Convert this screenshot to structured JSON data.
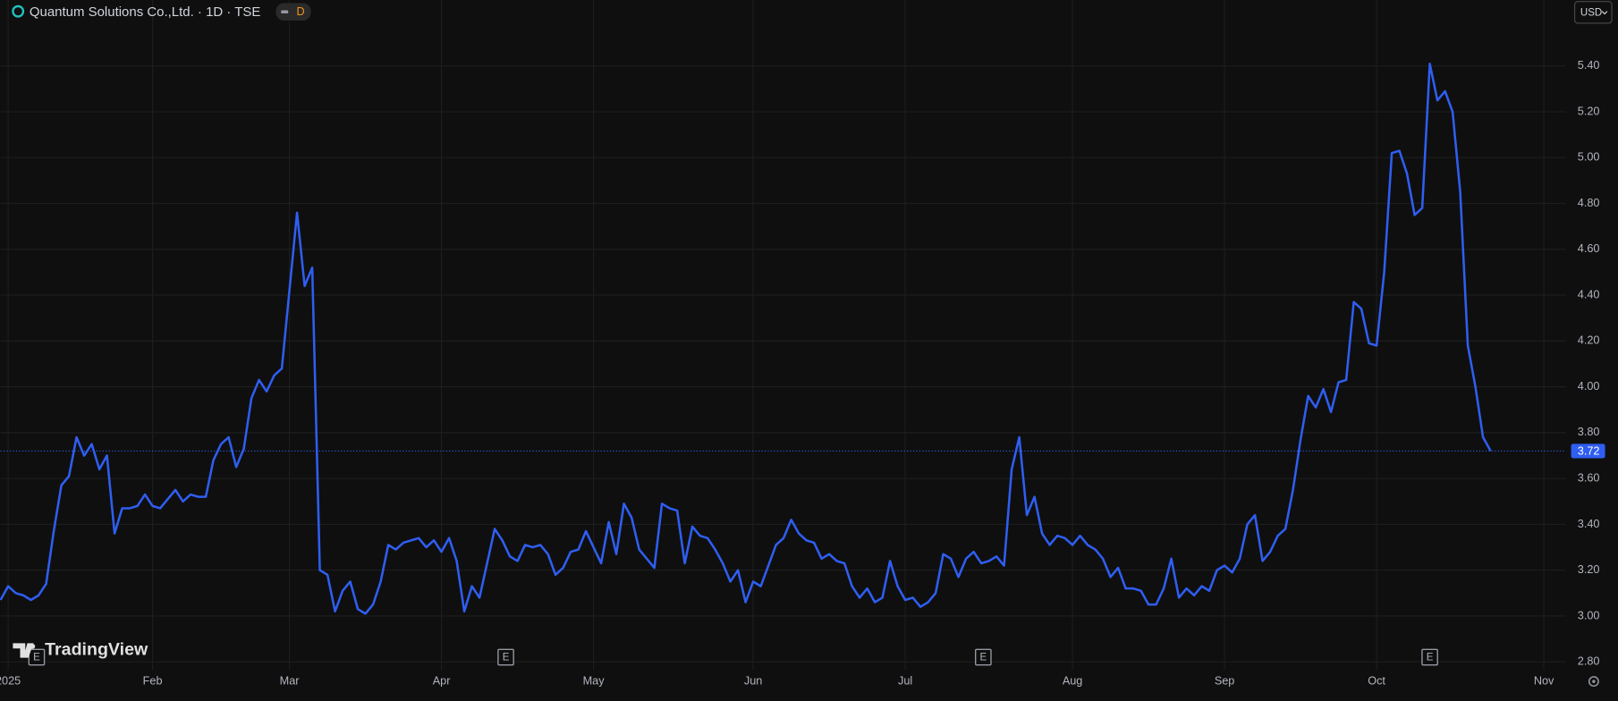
{
  "header": {
    "title": "Quantum Solutions Co.,Ltd. · 1D · TSE",
    "interval_badge": "D",
    "currency": "USD"
  },
  "watermark": "TradingView",
  "chart_data": {
    "type": "line",
    "color": "#2f5ef2",
    "grid": true,
    "ylim": [
      2.764,
      5.688
    ],
    "yticks": [
      {
        "value": 2.8,
        "label": "2.80"
      },
      {
        "value": 3.0,
        "label": "3.00"
      },
      {
        "value": 3.2,
        "label": "3.20"
      },
      {
        "value": 3.4,
        "label": "3.40"
      },
      {
        "value": 3.6,
        "label": "3.60"
      },
      {
        "value": 3.8,
        "label": "3.80"
      },
      {
        "value": 4.0,
        "label": "4.00"
      },
      {
        "value": 4.2,
        "label": "4.20"
      },
      {
        "value": 4.4,
        "label": "4.40"
      },
      {
        "value": 4.6,
        "label": "4.60"
      },
      {
        "value": 4.8,
        "label": "4.80"
      },
      {
        "value": 5.0,
        "label": "5.00"
      },
      {
        "value": 5.2,
        "label": "5.20"
      },
      {
        "value": 5.4,
        "label": "5.40"
      }
    ],
    "categories": [
      null,
      "2025",
      null,
      null,
      null,
      null,
      null,
      null,
      null,
      null,
      null,
      null,
      null,
      null,
      null,
      null,
      null,
      null,
      null,
      null,
      "Feb",
      null,
      null,
      null,
      null,
      null,
      null,
      null,
      null,
      null,
      null,
      null,
      null,
      null,
      null,
      null,
      null,
      null,
      "Mar",
      null,
      null,
      null,
      null,
      null,
      null,
      null,
      null,
      null,
      null,
      null,
      null,
      null,
      null,
      null,
      null,
      null,
      null,
      null,
      "Apr",
      null,
      null,
      null,
      null,
      null,
      null,
      null,
      null,
      null,
      null,
      null,
      null,
      null,
      null,
      null,
      null,
      null,
      null,
      null,
      "May",
      null,
      null,
      null,
      null,
      null,
      null,
      null,
      null,
      null,
      null,
      null,
      null,
      null,
      null,
      null,
      null,
      null,
      null,
      null,
      null,
      "Jun",
      null,
      null,
      null,
      null,
      null,
      null,
      null,
      null,
      null,
      null,
      null,
      null,
      null,
      null,
      null,
      null,
      null,
      null,
      null,
      "Jul",
      null,
      null,
      null,
      null,
      null,
      null,
      null,
      null,
      null,
      null,
      null,
      null,
      null,
      null,
      null,
      null,
      null,
      null,
      null,
      null,
      null,
      "Aug",
      null,
      null,
      null,
      null,
      null,
      null,
      null,
      null,
      null,
      null,
      null,
      null,
      null,
      null,
      null,
      null,
      null,
      null,
      null,
      "Sep",
      null,
      null,
      null,
      null,
      null,
      null,
      null,
      null,
      null,
      null,
      null,
      null,
      null,
      null,
      null,
      null,
      null,
      null,
      null,
      "Oct",
      null,
      null,
      null,
      null,
      null,
      null,
      null,
      null,
      null,
      null,
      null,
      null,
      null,
      null,
      null,
      null,
      null,
      null,
      null,
      null,
      null,
      "Nov"
    ],
    "values": [
      3.07,
      3.13,
      3.1,
      3.09,
      3.07,
      3.09,
      3.14,
      3.37,
      3.57,
      3.61,
      3.78,
      3.7,
      3.75,
      3.64,
      3.7,
      3.36,
      3.47,
      3.47,
      3.48,
      3.53,
      3.48,
      3.47,
      3.51,
      3.55,
      3.5,
      3.53,
      3.52,
      3.52,
      3.68,
      3.75,
      3.78,
      3.65,
      3.73,
      3.95,
      4.03,
      3.98,
      4.05,
      4.08,
      4.42,
      4.76,
      4.44,
      4.52,
      3.2,
      3.18,
      3.02,
      3.11,
      3.15,
      3.03,
      3.01,
      3.05,
      3.15,
      3.31,
      3.29,
      3.32,
      3.33,
      3.34,
      3.3,
      3.33,
      3.28,
      3.34,
      3.24,
      3.02,
      3.13,
      3.08,
      3.23,
      3.38,
      3.33,
      3.26,
      3.24,
      3.31,
      3.3,
      3.31,
      3.27,
      3.18,
      3.21,
      3.28,
      3.29,
      3.37,
      3.3,
      3.23,
      3.41,
      3.27,
      3.49,
      3.43,
      3.29,
      3.25,
      3.21,
      3.49,
      3.47,
      3.46,
      3.23,
      3.39,
      3.35,
      3.34,
      3.29,
      3.23,
      3.15,
      3.2,
      3.06,
      3.15,
      3.13,
      3.22,
      3.31,
      3.34,
      3.42,
      3.36,
      3.33,
      3.32,
      3.25,
      3.27,
      3.24,
      3.23,
      3.13,
      3.08,
      3.12,
      3.06,
      3.08,
      3.24,
      3.13,
      3.07,
      3.08,
      3.04,
      3.06,
      3.1,
      3.27,
      3.25,
      3.17,
      3.25,
      3.28,
      3.23,
      3.24,
      3.26,
      3.22,
      3.64,
      3.78,
      3.44,
      3.52,
      3.36,
      3.31,
      3.35,
      3.34,
      3.31,
      3.35,
      3.31,
      3.29,
      3.25,
      3.17,
      3.21,
      3.12,
      3.12,
      3.11,
      3.05,
      3.05,
      3.12,
      3.25,
      3.08,
      3.12,
      3.09,
      3.13,
      3.11,
      3.2,
      3.22,
      3.19,
      3.25,
      3.4,
      3.44,
      3.24,
      3.28,
      3.35,
      3.38,
      3.55,
      3.77,
      3.96,
      3.91,
      3.99,
      3.89,
      4.02,
      4.03,
      4.37,
      4.34,
      4.19,
      4.18,
      4.5,
      5.02,
      5.03,
      4.93,
      4.75,
      4.78,
      5.41,
      5.25,
      5.29,
      5.2,
      4.85,
      4.18,
      4.0,
      3.78,
      3.72,
      null,
      null,
      null,
      null,
      null,
      null,
      null
    ],
    "last_price": 3.72,
    "event_labels": [
      "E",
      "E",
      "E",
      "E"
    ]
  }
}
